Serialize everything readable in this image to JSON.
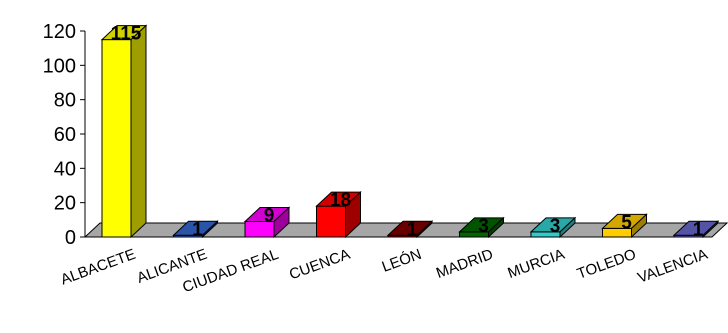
{
  "chart_data": {
    "type": "bar",
    "title": "",
    "xlabel": "",
    "ylabel": "",
    "ylim": [
      0,
      120
    ],
    "yticks": [
      0,
      20,
      40,
      60,
      80,
      100,
      120
    ],
    "grid": false,
    "legend": "none",
    "categories": [
      "ALBACETE",
      "ALICANTE",
      "CIUDAD REAL",
      "CUENCA",
      "LEÓN",
      "MADRID",
      "MURCIA",
      "TOLEDO",
      "VALENCIA"
    ],
    "values": [
      115,
      1,
      9,
      18,
      1,
      3,
      3,
      5,
      1
    ],
    "data_labels": [
      "115",
      "1",
      "9",
      "18",
      "1",
      "3",
      "3",
      "5",
      "1"
    ],
    "colors": [
      "#ffff00",
      "#3366cc",
      "#ff00ff",
      "#ff0000",
      "#800000",
      "#006600",
      "#33cccc",
      "#ffcc00",
      "#6666cc"
    ],
    "floor_color": "#a6a6a6"
  }
}
